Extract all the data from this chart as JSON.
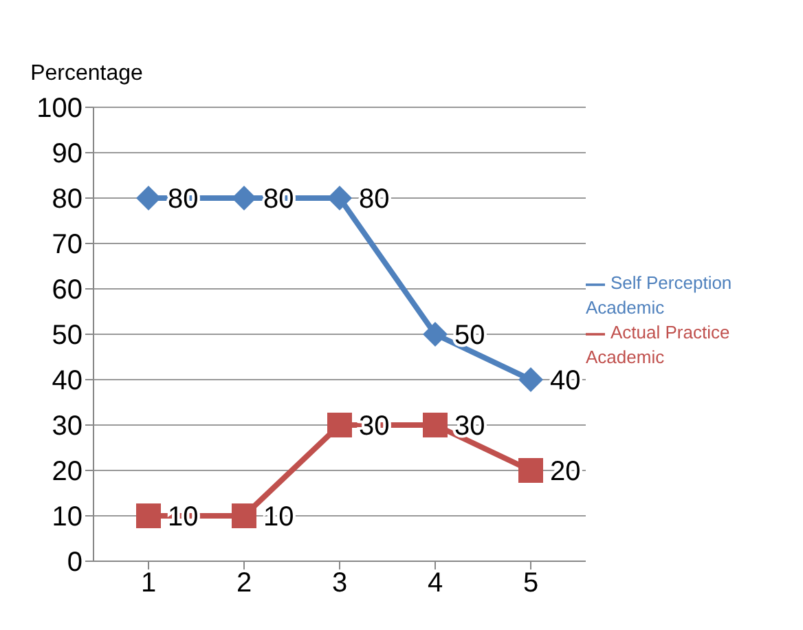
{
  "chart_data": {
    "type": "line",
    "ylabel": "Percentage",
    "categories": [
      "1",
      "2",
      "3",
      "4",
      "5"
    ],
    "series": [
      {
        "name": "Self Perception Academic",
        "color": "#4f81bd",
        "values": [
          80,
          80,
          80,
          50,
          40
        ],
        "marker": "diamond"
      },
      {
        "name": "Actual Practice Academic",
        "color": "#c0504d",
        "values": [
          10,
          10,
          30,
          30,
          20
        ],
        "marker": "square"
      }
    ],
    "ylim": [
      0,
      100
    ],
    "yticks": [
      0,
      10,
      20,
      30,
      40,
      50,
      60,
      70,
      80,
      90,
      100
    ],
    "grid": "y",
    "legend": "right",
    "data_labels": true
  }
}
